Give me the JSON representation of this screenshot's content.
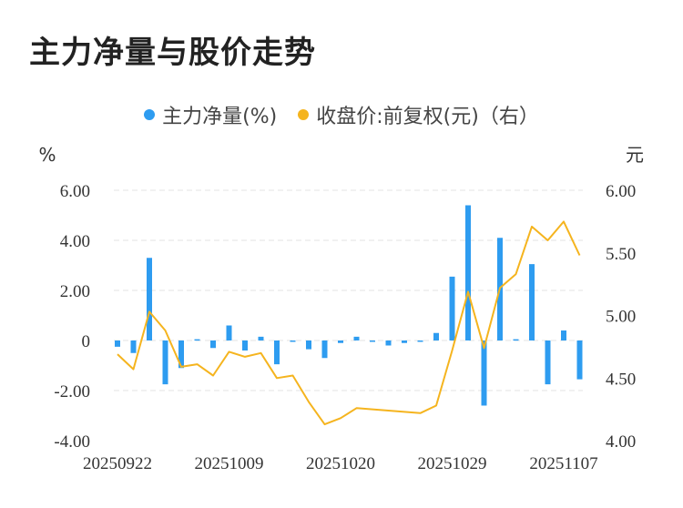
{
  "title": "主力净量与股价走势",
  "legend": {
    "bar_label": "主力净量(%)",
    "line_label": "收盘价:前复权(元)（右）"
  },
  "colors": {
    "bar": "#2e9cf0",
    "line": "#f5b41e",
    "grid": "#e3e3e3"
  },
  "chart_data": {
    "type": "bar+line",
    "title": "主力净量与股价走势",
    "left_axis": {
      "unit": "%",
      "range": [
        -4,
        6
      ],
      "ticks": [
        "6.00",
        "4.00",
        "2.00",
        "0",
        "-2.00",
        "-4.00"
      ]
    },
    "right_axis": {
      "unit": "元",
      "range": [
        4.0,
        6.0
      ],
      "ticks": [
        "6.00",
        "5.50",
        "5.00",
        "4.50",
        "4.00"
      ]
    },
    "x_tick_labels": [
      "20250922",
      "20251009",
      "20251020",
      "20251029",
      "20251107"
    ],
    "x_tick_indices": [
      0,
      7,
      14,
      21,
      28
    ],
    "series": [
      {
        "name": "主力净量(%)",
        "type": "bar",
        "axis": "left",
        "values": [
          -0.25,
          -0.5,
          3.3,
          -1.75,
          -1.1,
          0.05,
          -0.3,
          0.6,
          -0.4,
          0.15,
          -0.95,
          -0.05,
          -0.35,
          -0.7,
          -0.1,
          0.15,
          -0.05,
          -0.2,
          -0.1,
          -0.05,
          0.3,
          2.55,
          5.4,
          -2.6,
          4.1,
          0.05,
          3.05,
          -1.75,
          0.4,
          -1.55
        ]
      },
      {
        "name": "收盘价:前复权(元)（右）",
        "type": "line",
        "axis": "right",
        "values": [
          4.69,
          4.57,
          5.03,
          4.88,
          4.59,
          4.61,
          4.52,
          4.71,
          4.67,
          4.7,
          4.5,
          4.52,
          4.31,
          4.13,
          4.18,
          4.26,
          null,
          null,
          null,
          4.22,
          4.28,
          4.72,
          5.19,
          4.74,
          5.22,
          5.33,
          5.71,
          5.6,
          5.75,
          5.48
        ]
      }
    ]
  }
}
